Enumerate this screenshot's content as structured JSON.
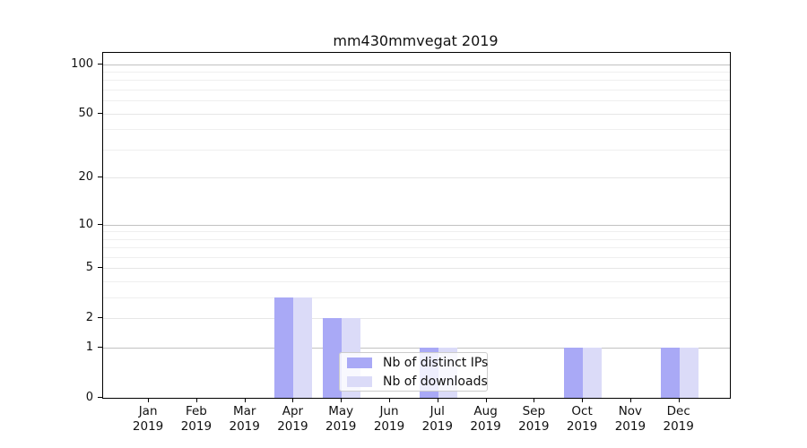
{
  "colors": {
    "distinct_ips_bar": "#a9a9f6",
    "downloads_bar": "#dbdbf8",
    "major_gridline": "#c2c2c2",
    "light_gridline": "#e6e6e6",
    "minor_gridline": "#efefef",
    "axis_line": "#000000",
    "text": "#111111",
    "legend_border": "#cccccc"
  },
  "chart_data": {
    "type": "bar",
    "title": "mm430mmvegat 2019",
    "categories": [
      "Jan 2019",
      "Feb 2019",
      "Mar 2019",
      "Apr 2019",
      "May 2019",
      "Jun 2019",
      "Jul 2019",
      "Aug 2019",
      "Sep 2019",
      "Oct 2019",
      "Nov 2019",
      "Dec 2019"
    ],
    "series": [
      {
        "name": "Nb of distinct IPs",
        "color": "#a9a9f6",
        "values": [
          0,
          0,
          0,
          3,
          2,
          0,
          1,
          0,
          0,
          1,
          0,
          1
        ]
      },
      {
        "name": "Nb of downloads",
        "color": "#dbdbf8",
        "values": [
          0,
          0,
          0,
          3,
          2,
          0,
          1,
          0,
          0,
          1,
          0,
          1
        ]
      }
    ],
    "xlabel": "",
    "ylabel": "",
    "y_axis": {
      "scale": "log1p",
      "tick_values": [
        0,
        1,
        2,
        5,
        10,
        20,
        50,
        100
      ],
      "tick_labels": [
        "0",
        "1",
        "2",
        "5",
        "10",
        "20",
        "50",
        "100"
      ],
      "major_gridlines": [
        1,
        10,
        100
      ],
      "light_gridlines": [
        2,
        5,
        20,
        50
      ],
      "minor_gridlines": [
        3,
        4,
        6,
        7,
        8,
        9,
        30,
        40,
        60,
        70,
        80,
        90
      ],
      "ylim": [
        0,
        117
      ]
    },
    "grid": "horizontal",
    "legend_position": "lower center"
  }
}
